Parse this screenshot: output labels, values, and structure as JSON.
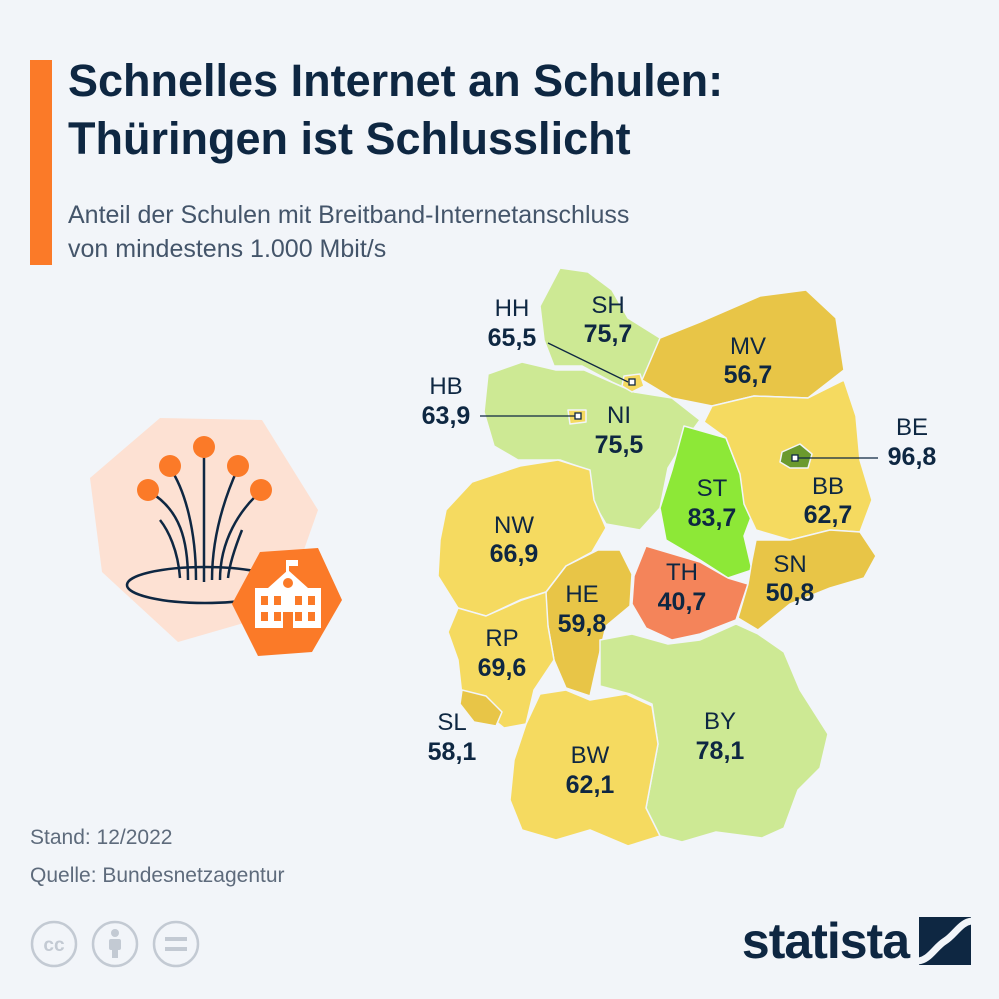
{
  "header": {
    "title_line1": "Schnelles Internet an Schulen:",
    "title_line2": "Thüringen ist Schlusslicht",
    "subtitle_line1": "Anteil der Schulen mit Breitband-Internetanschluss",
    "subtitle_line2": "von mindestens 1.000 Mbit/s"
  },
  "colors": {
    "accent": "#fb7a28",
    "title": "#0e2742",
    "scale_lowest": "#f4845a",
    "scale_low": "#e8c547",
    "scale_mid": "#f5da60",
    "scale_high": "#cde994",
    "scale_higher": "#8de837",
    "scale_highest": "#6b9a2e"
  },
  "chart_data": {
    "type": "choropleth",
    "regions": [
      {
        "code": "SH",
        "value": "75,7"
      },
      {
        "code": "HH",
        "value": "65,5"
      },
      {
        "code": "MV",
        "value": "56,7"
      },
      {
        "code": "HB",
        "value": "63,9"
      },
      {
        "code": "NI",
        "value": "75,5"
      },
      {
        "code": "BE",
        "value": "96,8"
      },
      {
        "code": "ST",
        "value": "83,7"
      },
      {
        "code": "BB",
        "value": "62,7"
      },
      {
        "code": "NW",
        "value": "66,9"
      },
      {
        "code": "TH",
        "value": "40,7"
      },
      {
        "code": "SN",
        "value": "50,8"
      },
      {
        "code": "HE",
        "value": "59,8"
      },
      {
        "code": "RP",
        "value": "69,6"
      },
      {
        "code": "SL",
        "value": "58,1"
      },
      {
        "code": "BY",
        "value": "78,1"
      },
      {
        "code": "BW",
        "value": "62,1"
      }
    ]
  },
  "footer": {
    "stand": "Stand: 12/2022",
    "quelle": "Quelle: Bundesnetzagentur"
  },
  "icons": {
    "illustration": "fiber-school-illustration",
    "license": [
      "cc-icon",
      "by-person-icon",
      "nd-equals-icon"
    ],
    "brand": "statista-logo-icon"
  },
  "brand": {
    "name": "statista"
  }
}
